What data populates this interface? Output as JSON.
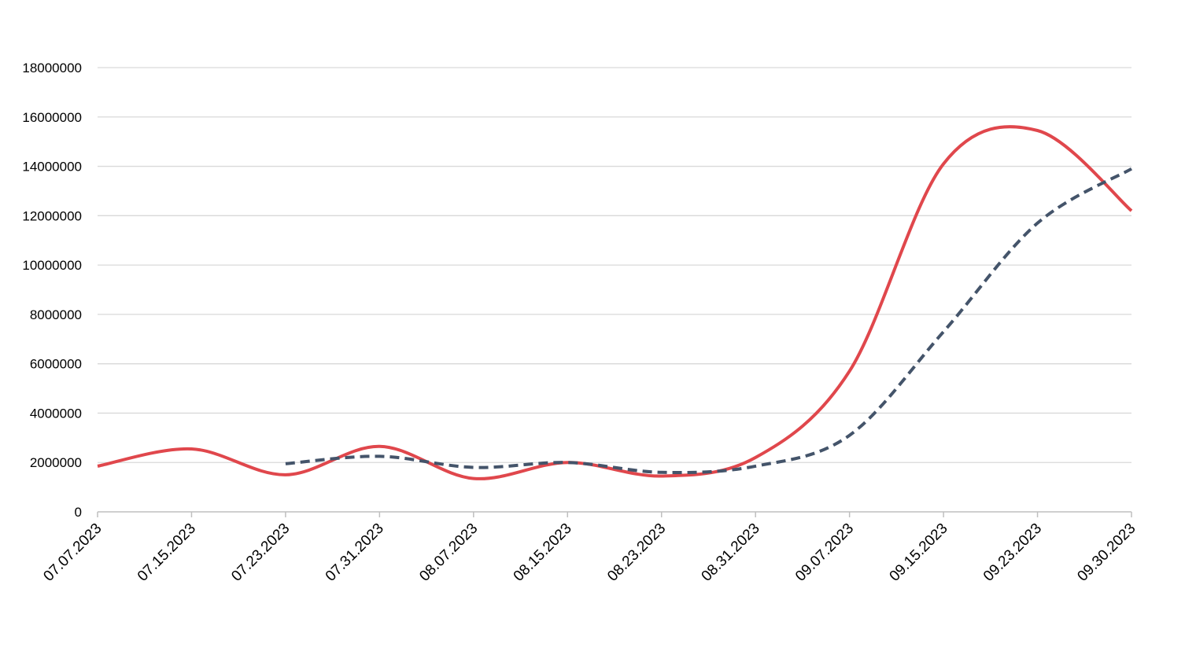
{
  "chart_data": {
    "type": "line",
    "x_labels": [
      "07.07.2023",
      "07.15.2023",
      "07.23.2023",
      "07.31.2023",
      "08.07.2023",
      "08.15.2023",
      "08.23.2023",
      "08.31.2023",
      "09.07.2023",
      "09.15.2023",
      "09.23.2023",
      "09.30.2023"
    ],
    "y_ticks": [
      "0",
      "2000000",
      "4000000",
      "6000000",
      "8000000",
      "10000000",
      "12000000",
      "14000000",
      "16000000",
      "18000000"
    ],
    "ylim": [
      0,
      18000000
    ],
    "grid": true,
    "legend": "none",
    "series": [
      {
        "color": "#e0474c",
        "style": "solid",
        "values": [
          1850000,
          2550000,
          1500000,
          2650000,
          1350000,
          2000000,
          1450000,
          2200000,
          5700000,
          14100000,
          15450000,
          12200000
        ]
      },
      {
        "color": "#44546a",
        "style": "dashed",
        "values": [
          null,
          null,
          1950000,
          2250000,
          1800000,
          2000000,
          1600000,
          1850000,
          3100000,
          7300000,
          11700000,
          13900000
        ]
      }
    ]
  }
}
